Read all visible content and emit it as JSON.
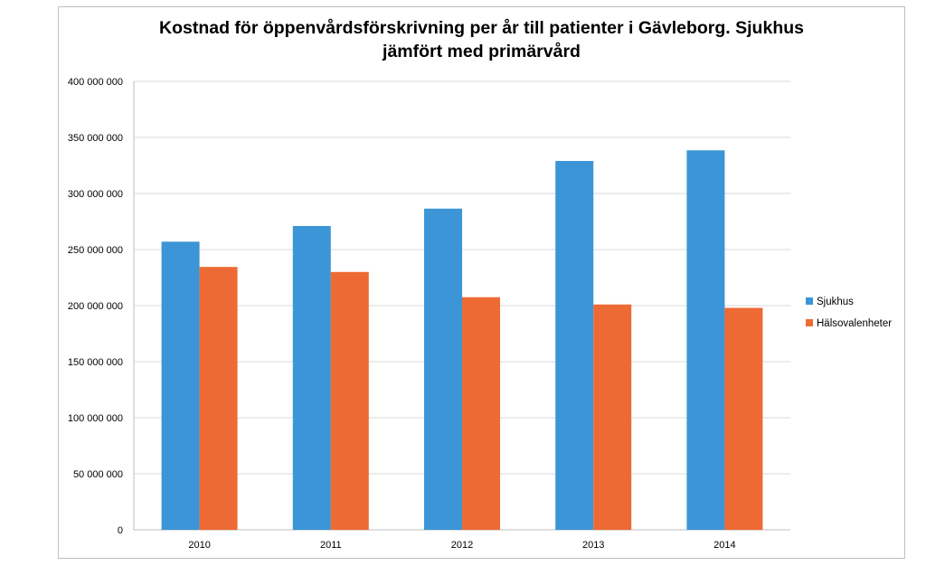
{
  "chart_data": {
    "type": "bar",
    "title": "Kostnad för öppenvårdsförskrivning per år till patienter i Gävleborg. Sjukhus jämfört med primärvård",
    "title_lines": [
      "Kostnad för öppenvårdsförskrivning per år till patienter i Gävleborg. Sjukhus",
      "jämfört med primärvård"
    ],
    "categories": [
      "2010",
      "2011",
      "2012",
      "2013",
      "2014"
    ],
    "series": [
      {
        "name": "Sjukhus",
        "color": "#3b95d6",
        "values": [
          257000000,
          271000000,
          286500000,
          329000000,
          338500000
        ]
      },
      {
        "name": "Hälsovalenheter",
        "color": "#ee6a34",
        "values": [
          234500000,
          230000000,
          207500000,
          201000000,
          198000000
        ]
      }
    ],
    "ylim": [
      0,
      400000000
    ],
    "yticks": [
      0,
      50000000,
      100000000,
      150000000,
      200000000,
      250000000,
      300000000,
      350000000,
      400000000
    ],
    "ytick_labels": [
      "0",
      "50 000 000",
      "100 000 000",
      "150 000 000",
      "200 000 000",
      "250 000 000",
      "300 000 000",
      "350 000 000",
      "400 000 000"
    ],
    "xlabel": "",
    "ylabel": "",
    "grid": true,
    "legend_position": "right"
  }
}
